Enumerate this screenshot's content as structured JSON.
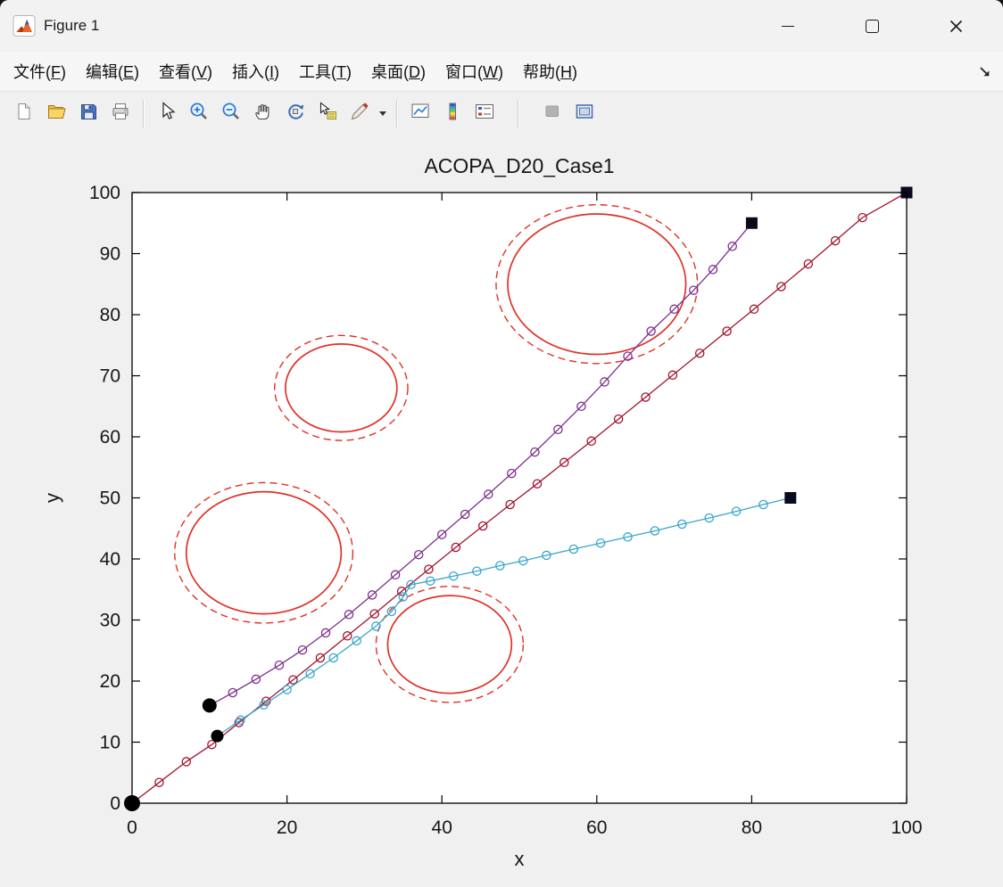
{
  "window": {
    "title": "Figure 1",
    "app_icon": "matlab-figure-icon",
    "controls": [
      "minimize-icon",
      "maximize-icon",
      "close-icon"
    ]
  },
  "menu": {
    "items": [
      "文件(F)",
      "编辑(E)",
      "查看(V)",
      "插入(I)",
      "工具(T)",
      "桌面(D)",
      "窗口(W)",
      "帮助(H)"
    ],
    "corner_icon": "dock-figure-arrow-icon"
  },
  "toolbar": {
    "items": [
      {
        "icon": "new-figure-icon"
      },
      {
        "icon": "open-file-icon"
      },
      {
        "icon": "save-icon"
      },
      {
        "icon": "print-icon"
      },
      {
        "sep": true
      },
      {
        "icon": "pointer-icon"
      },
      {
        "icon": "zoom-in-icon"
      },
      {
        "icon": "zoom-out-icon"
      },
      {
        "icon": "pan-hand-icon"
      },
      {
        "icon": "rotate-3d-icon"
      },
      {
        "icon": "data-cursor-icon"
      },
      {
        "icon": "brush-icon",
        "dropdown": true
      },
      {
        "sep": true
      },
      {
        "icon": "link-plot-icon"
      },
      {
        "icon": "colorbar-icon"
      },
      {
        "icon": "legend-icon"
      },
      {
        "sep": true,
        "wide": true
      },
      {
        "icon": "disabled-tool-icon",
        "disabled": true
      },
      {
        "icon": "dock-window-icon"
      }
    ]
  },
  "chart_data": {
    "type": "line",
    "title": "ACOPA_D20_Case1",
    "xlabel": "x",
    "ylabel": "y",
    "xlim": [
      0,
      100
    ],
    "ylim": [
      0,
      100
    ],
    "xticks": [
      0,
      20,
      40,
      60,
      80,
      100
    ],
    "yticks": [
      0,
      10,
      20,
      30,
      40,
      50,
      60,
      70,
      80,
      90,
      100
    ],
    "grid": false,
    "legend": "none",
    "obstacles": {
      "color": "#e03127",
      "items": [
        {
          "cx": 60,
          "cy": 85,
          "r": 11.5,
          "r_dashed": 13
        },
        {
          "cx": 27,
          "cy": 68,
          "r": 7.2,
          "r_dashed": 8.6
        },
        {
          "cx": 17,
          "cy": 41,
          "r": 10,
          "r_dashed": 11.5
        },
        {
          "cx": 41,
          "cy": 26,
          "r": 8,
          "r_dashed": 9.5
        }
      ]
    },
    "series": [
      {
        "name": "path-1",
        "color": "#A2142F",
        "marker": "circle",
        "points": [
          [
            0,
            0
          ],
          [
            3.5,
            3.4
          ],
          [
            7,
            6.8
          ],
          [
            10.3,
            9.6
          ],
          [
            13.8,
            13.2
          ],
          [
            17.3,
            16.7
          ],
          [
            20.8,
            20.2
          ],
          [
            24.3,
            23.8
          ],
          [
            27.8,
            27.4
          ],
          [
            31.3,
            31
          ],
          [
            34.8,
            34.7
          ],
          [
            38.3,
            38.3
          ],
          [
            41.8,
            41.9
          ],
          [
            45.3,
            45.4
          ],
          [
            48.8,
            48.9
          ],
          [
            52.3,
            52.3
          ],
          [
            55.8,
            55.8
          ],
          [
            59.3,
            59.3
          ],
          [
            62.8,
            62.9
          ],
          [
            66.3,
            66.5
          ],
          [
            69.8,
            70.1
          ],
          [
            73.3,
            73.7
          ],
          [
            76.8,
            77.3
          ],
          [
            80.3,
            80.9
          ],
          [
            83.8,
            84.6
          ],
          [
            87.3,
            88.3
          ],
          [
            90.8,
            92.1
          ],
          [
            94.3,
            95.9
          ],
          [
            100,
            100
          ]
        ]
      },
      {
        "name": "path-2",
        "color": "#7E2F8E",
        "marker": "circle",
        "points": [
          [
            10,
            16
          ],
          [
            13,
            18.1
          ],
          [
            16,
            20.3
          ],
          [
            19,
            22.6
          ],
          [
            22,
            25.1
          ],
          [
            25,
            27.9
          ],
          [
            28,
            30.9
          ],
          [
            31,
            34.1
          ],
          [
            34,
            37.4
          ],
          [
            37,
            40.7
          ],
          [
            40,
            44
          ],
          [
            43,
            47.3
          ],
          [
            46,
            50.6
          ],
          [
            49,
            54
          ],
          [
            52,
            57.5
          ],
          [
            55,
            61.2
          ],
          [
            58,
            65
          ],
          [
            61,
            69
          ],
          [
            64,
            73.2
          ],
          [
            67,
            77.3
          ],
          [
            70,
            80.9
          ],
          [
            72.5,
            84
          ],
          [
            75,
            87.4
          ],
          [
            77.5,
            91.2
          ],
          [
            80,
            95
          ]
        ]
      },
      {
        "name": "path-3",
        "color": "#39A7CB",
        "marker": "circle",
        "points": [
          [
            11,
            11
          ],
          [
            14,
            13.6
          ],
          [
            17,
            16.1
          ],
          [
            20,
            18.6
          ],
          [
            23,
            21.2
          ],
          [
            26,
            23.8
          ],
          [
            29,
            26.6
          ],
          [
            31.5,
            29
          ],
          [
            33.5,
            31.4
          ],
          [
            35,
            33.8
          ],
          [
            36,
            35.8
          ],
          [
            38.5,
            36.4
          ],
          [
            41.5,
            37.2
          ],
          [
            44.5,
            38
          ],
          [
            47.5,
            38.9
          ],
          [
            50.5,
            39.7
          ],
          [
            53.5,
            40.6
          ],
          [
            57,
            41.6
          ],
          [
            60.5,
            42.6
          ],
          [
            64,
            43.6
          ],
          [
            67.5,
            44.6
          ],
          [
            71,
            45.7
          ],
          [
            74.5,
            46.7
          ],
          [
            78,
            47.8
          ],
          [
            81.5,
            48.9
          ],
          [
            85,
            50
          ]
        ]
      }
    ],
    "start_points": {
      "color": "#000000",
      "marker": "filled-circle",
      "sizes": [
        9,
        8,
        7
      ],
      "points": [
        [
          0,
          0
        ],
        [
          10,
          16
        ],
        [
          11,
          11
        ]
      ]
    },
    "end_points": {
      "color": "#0a0a1e",
      "marker": "filled-square",
      "points": [
        [
          100,
          100
        ],
        [
          80,
          95
        ],
        [
          85,
          50
        ]
      ]
    }
  }
}
